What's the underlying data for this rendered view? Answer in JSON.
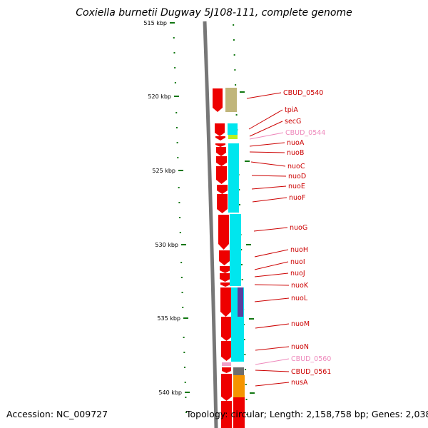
{
  "title": "Coxiella burnetii Dugway 5J108-111, complete genome",
  "accession_text": "Accession: NC_009727",
  "topology_text": "Topology: circular; Length: 2,158,758 bp; Genes: 2,038",
  "scale_labels": [
    "515 kbp",
    "520 kbp",
    "525 kbp",
    "530 kbp",
    "535 kbp",
    "540 kbp"
  ],
  "colors": {
    "backbone": "#777777",
    "tick": "#117711",
    "cds_forward": "#ee0000",
    "label_normal": "#cc0000",
    "label_faint": "#ee88bb",
    "cyan": "#00e6ee",
    "khaki": "#c0b57a",
    "purple": "#5a3e9e",
    "orange": "#f59400",
    "gray": "#6e6e6e",
    "lime": "#b8f020",
    "pink": "#f0a0c8"
  },
  "gene_labels": [
    {
      "text": "CBUD_0540",
      "faint": false
    },
    {
      "text": "tpiA",
      "faint": false
    },
    {
      "text": "secG",
      "faint": false
    },
    {
      "text": "CBUD_0544",
      "faint": true
    },
    {
      "text": "nuoA",
      "faint": false
    },
    {
      "text": "nuoB",
      "faint": false
    },
    {
      "text": "nuoC",
      "faint": false
    },
    {
      "text": "nuoD",
      "faint": false
    },
    {
      "text": "nuoE",
      "faint": false
    },
    {
      "text": "nuoF",
      "faint": false
    },
    {
      "text": "nuoG",
      "faint": false
    },
    {
      "text": "nuoH",
      "faint": false
    },
    {
      "text": "nuoI",
      "faint": false
    },
    {
      "text": "nuoJ",
      "faint": false
    },
    {
      "text": "nuoK",
      "faint": false
    },
    {
      "text": "nuoL",
      "faint": false
    },
    {
      "text": "nuoM",
      "faint": false
    },
    {
      "text": "nuoN",
      "faint": false
    },
    {
      "text": "CBUD_0560",
      "faint": true
    },
    {
      "text": "CBUD_0561",
      "faint": false
    },
    {
      "text": "nusA",
      "faint": false
    }
  ]
}
